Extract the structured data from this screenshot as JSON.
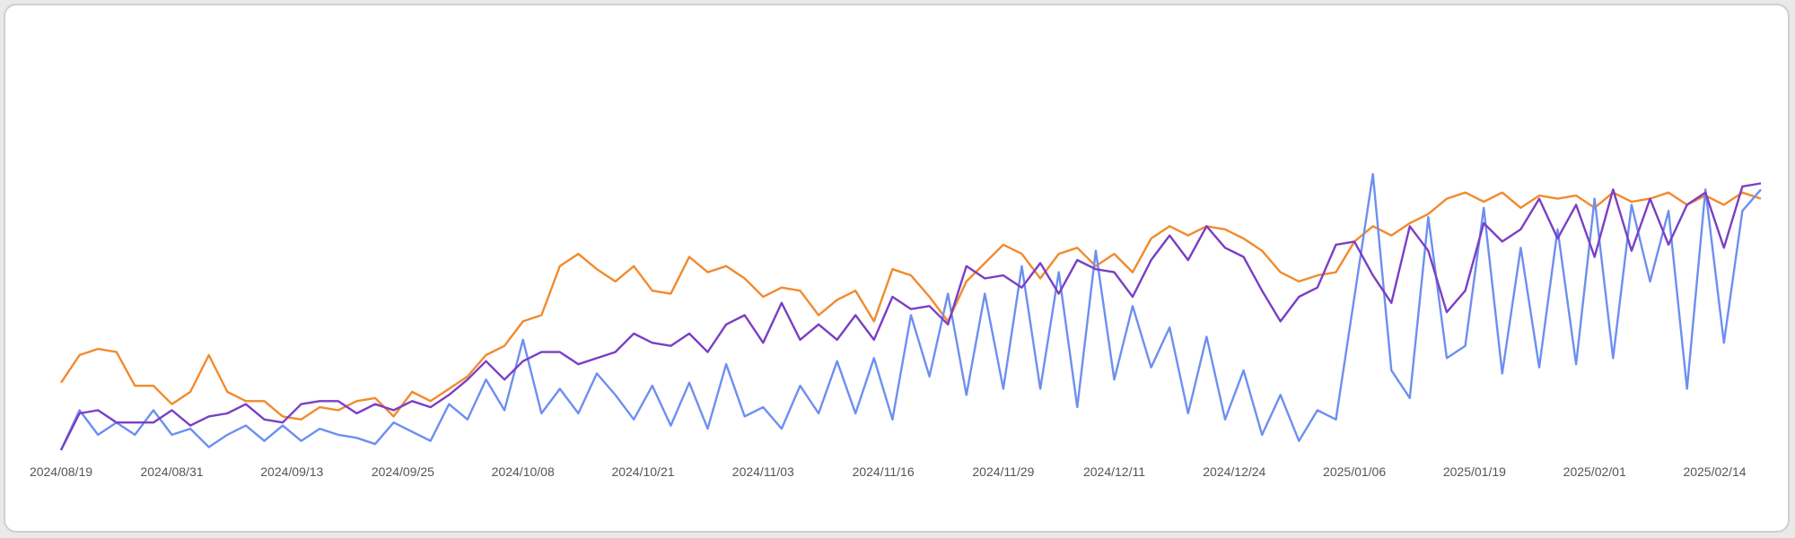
{
  "chart_data": {
    "type": "line",
    "title": "",
    "xlabel": "",
    "ylabel": "",
    "x_start": "2024/08/19",
    "x_end": "2025/02/19",
    "x_ticks": [
      "2024/08/19",
      "2024/08/31",
      "2024/09/13",
      "2024/09/25",
      "2024/10/08",
      "2024/10/21",
      "2024/11/03",
      "2024/11/16",
      "2024/11/29",
      "2024/12/11",
      "2024/12/24",
      "2025/01/06",
      "2025/01/19",
      "2025/02/01",
      "2025/02/14"
    ],
    "y_axis_visible": false,
    "ylim": [
      0,
      100
    ],
    "grid": false,
    "legend": "none",
    "series": [
      {
        "color": "#f28a2e",
        "points": [
          [
            "2024/08/19",
            22
          ],
          [
            "2024/08/21",
            31
          ],
          [
            "2024/08/23",
            33
          ],
          [
            "2024/08/25",
            32
          ],
          [
            "2024/08/27",
            21
          ],
          [
            "2024/08/29",
            21
          ],
          [
            "2024/08/31",
            15
          ],
          [
            "2024/09/02",
            19
          ],
          [
            "2024/09/04",
            31
          ],
          [
            "2024/09/06",
            19
          ],
          [
            "2024/09/08",
            16
          ],
          [
            "2024/09/10",
            16
          ],
          [
            "2024/09/12",
            11
          ],
          [
            "2024/09/14",
            10
          ],
          [
            "2024/09/16",
            14
          ],
          [
            "2024/09/18",
            13
          ],
          [
            "2024/09/20",
            16
          ],
          [
            "2024/09/22",
            17
          ],
          [
            "2024/09/24",
            11
          ],
          [
            "2024/09/26",
            19
          ],
          [
            "2024/09/28",
            16
          ],
          [
            "2024/09/30",
            20
          ],
          [
            "2024/10/02",
            24
          ],
          [
            "2024/10/04",
            31
          ],
          [
            "2024/10/06",
            34
          ],
          [
            "2024/10/08",
            42
          ],
          [
            "2024/10/10",
            44
          ],
          [
            "2024/10/12",
            60
          ],
          [
            "2024/10/14",
            64
          ],
          [
            "2024/10/16",
            59
          ],
          [
            "2024/10/18",
            55
          ],
          [
            "2024/10/20",
            60
          ],
          [
            "2024/10/22",
            52
          ],
          [
            "2024/10/24",
            51
          ],
          [
            "2024/10/26",
            63
          ],
          [
            "2024/10/28",
            58
          ],
          [
            "2024/10/30",
            60
          ],
          [
            "2024/11/01",
            56
          ],
          [
            "2024/11/03",
            50
          ],
          [
            "2024/11/05",
            53
          ],
          [
            "2024/11/07",
            52
          ],
          [
            "2024/11/09",
            44
          ],
          [
            "2024/11/11",
            49
          ],
          [
            "2024/11/13",
            52
          ],
          [
            "2024/11/15",
            42
          ],
          [
            "2024/11/17",
            59
          ],
          [
            "2024/11/19",
            57
          ],
          [
            "2024/11/21",
            50
          ],
          [
            "2024/11/23",
            42
          ],
          [
            "2024/11/25",
            55
          ],
          [
            "2024/11/27",
            61
          ],
          [
            "2024/11/29",
            67
          ],
          [
            "2024/12/01",
            64
          ],
          [
            "2024/12/03",
            56
          ],
          [
            "2024/12/05",
            64
          ],
          [
            "2024/12/07",
            66
          ],
          [
            "2024/12/09",
            60
          ],
          [
            "2024/12/11",
            64
          ],
          [
            "2024/12/13",
            58
          ],
          [
            "2024/12/15",
            69
          ],
          [
            "2024/12/17",
            73
          ],
          [
            "2024/12/19",
            70
          ],
          [
            "2024/12/21",
            73
          ],
          [
            "2024/12/23",
            72
          ],
          [
            "2024/12/25",
            69
          ],
          [
            "2024/12/27",
            65
          ],
          [
            "2024/12/29",
            58
          ],
          [
            "2024/12/31",
            55
          ],
          [
            "2025/01/02",
            57
          ],
          [
            "2025/01/04",
            58
          ],
          [
            "2025/01/06",
            68
          ],
          [
            "2025/01/08",
            73
          ],
          [
            "2025/01/10",
            70
          ],
          [
            "2025/01/12",
            74
          ],
          [
            "2025/01/14",
            77
          ],
          [
            "2025/01/16",
            82
          ],
          [
            "2025/01/18",
            84
          ],
          [
            "2025/01/20",
            81
          ],
          [
            "2025/01/22",
            84
          ],
          [
            "2025/01/24",
            79
          ],
          [
            "2025/01/26",
            83
          ],
          [
            "2025/01/28",
            82
          ],
          [
            "2025/01/30",
            83
          ],
          [
            "2025/02/01",
            79
          ],
          [
            "2025/02/03",
            84
          ],
          [
            "2025/02/05",
            81
          ],
          [
            "2025/02/07",
            82
          ],
          [
            "2025/02/09",
            84
          ],
          [
            "2025/02/11",
            80
          ],
          [
            "2025/02/13",
            83
          ],
          [
            "2025/02/15",
            80
          ],
          [
            "2025/02/17",
            84
          ],
          [
            "2025/02/19",
            82
          ]
        ]
      },
      {
        "color": "#6d8ff0",
        "points": [
          [
            "2024/08/19",
            0
          ],
          [
            "2024/08/21",
            13
          ],
          [
            "2024/08/23",
            5
          ],
          [
            "2024/08/25",
            9
          ],
          [
            "2024/08/27",
            5
          ],
          [
            "2024/08/29",
            13
          ],
          [
            "2024/08/31",
            5
          ],
          [
            "2024/09/02",
            7
          ],
          [
            "2024/09/04",
            1
          ],
          [
            "2024/09/06",
            5
          ],
          [
            "2024/09/08",
            8
          ],
          [
            "2024/09/10",
            3
          ],
          [
            "2024/09/12",
            8
          ],
          [
            "2024/09/14",
            3
          ],
          [
            "2024/09/16",
            7
          ],
          [
            "2024/09/18",
            5
          ],
          [
            "2024/09/20",
            4
          ],
          [
            "2024/09/22",
            2
          ],
          [
            "2024/09/24",
            9
          ],
          [
            "2024/09/26",
            6
          ],
          [
            "2024/09/28",
            3
          ],
          [
            "2024/09/30",
            15
          ],
          [
            "2024/10/02",
            10
          ],
          [
            "2024/10/04",
            23
          ],
          [
            "2024/10/06",
            13
          ],
          [
            "2024/10/08",
            36
          ],
          [
            "2024/10/10",
            12
          ],
          [
            "2024/10/12",
            20
          ],
          [
            "2024/10/14",
            12
          ],
          [
            "2024/10/16",
            25
          ],
          [
            "2024/10/18",
            18
          ],
          [
            "2024/10/20",
            10
          ],
          [
            "2024/10/22",
            21
          ],
          [
            "2024/10/24",
            8
          ],
          [
            "2024/10/26",
            22
          ],
          [
            "2024/10/28",
            7
          ],
          [
            "2024/10/30",
            28
          ],
          [
            "2024/11/01",
            11
          ],
          [
            "2024/11/03",
            14
          ],
          [
            "2024/11/05",
            7
          ],
          [
            "2024/11/07",
            21
          ],
          [
            "2024/11/09",
            12
          ],
          [
            "2024/11/11",
            29
          ],
          [
            "2024/11/13",
            12
          ],
          [
            "2024/11/15",
            30
          ],
          [
            "2024/11/17",
            10
          ],
          [
            "2024/11/19",
            44
          ],
          [
            "2024/11/21",
            24
          ],
          [
            "2024/11/23",
            51
          ],
          [
            "2024/11/25",
            18
          ],
          [
            "2024/11/27",
            51
          ],
          [
            "2024/11/29",
            20
          ],
          [
            "2024/12/01",
            60
          ],
          [
            "2024/12/03",
            20
          ],
          [
            "2024/12/05",
            58
          ],
          [
            "2024/12/07",
            14
          ],
          [
            "2024/12/09",
            65
          ],
          [
            "2024/12/11",
            23
          ],
          [
            "2024/12/13",
            47
          ],
          [
            "2024/12/15",
            27
          ],
          [
            "2024/12/17",
            40
          ],
          [
            "2024/12/19",
            12
          ],
          [
            "2024/12/21",
            37
          ],
          [
            "2024/12/23",
            10
          ],
          [
            "2024/12/25",
            26
          ],
          [
            "2024/12/27",
            5
          ],
          [
            "2024/12/29",
            18
          ],
          [
            "2024/12/31",
            3
          ],
          [
            "2025/01/02",
            13
          ],
          [
            "2025/01/04",
            10
          ],
          [
            "2025/01/06",
            50
          ],
          [
            "2025/01/08",
            90
          ],
          [
            "2025/01/10",
            26
          ],
          [
            "2025/01/12",
            17
          ],
          [
            "2025/01/14",
            76
          ],
          [
            "2025/01/16",
            30
          ],
          [
            "2025/01/18",
            34
          ],
          [
            "2025/01/20",
            79
          ],
          [
            "2025/01/22",
            25
          ],
          [
            "2025/01/24",
            66
          ],
          [
            "2025/01/26",
            27
          ],
          [
            "2025/01/28",
            72
          ],
          [
            "2025/01/30",
            28
          ],
          [
            "2025/02/01",
            82
          ],
          [
            "2025/02/03",
            30
          ],
          [
            "2025/02/05",
            80
          ],
          [
            "2025/02/07",
            55
          ],
          [
            "2025/02/09",
            78
          ],
          [
            "2025/02/11",
            20
          ],
          [
            "2025/02/13",
            85
          ],
          [
            "2025/02/15",
            35
          ],
          [
            "2025/02/17",
            78
          ],
          [
            "2025/02/19",
            85
          ]
        ]
      },
      {
        "color": "#7a3fc4",
        "points": [
          [
            "2024/08/19",
            0
          ],
          [
            "2024/08/21",
            12
          ],
          [
            "2024/08/23",
            13
          ],
          [
            "2024/08/25",
            9
          ],
          [
            "2024/08/27",
            9
          ],
          [
            "2024/08/29",
            9
          ],
          [
            "2024/08/31",
            13
          ],
          [
            "2024/09/02",
            8
          ],
          [
            "2024/09/04",
            11
          ],
          [
            "2024/09/06",
            12
          ],
          [
            "2024/09/08",
            15
          ],
          [
            "2024/09/10",
            10
          ],
          [
            "2024/09/12",
            9
          ],
          [
            "2024/09/14",
            15
          ],
          [
            "2024/09/16",
            16
          ],
          [
            "2024/09/18",
            16
          ],
          [
            "2024/09/20",
            12
          ],
          [
            "2024/09/22",
            15
          ],
          [
            "2024/09/24",
            13
          ],
          [
            "2024/09/26",
            16
          ],
          [
            "2024/09/28",
            14
          ],
          [
            "2024/09/30",
            18
          ],
          [
            "2024/10/02",
            23
          ],
          [
            "2024/10/04",
            29
          ],
          [
            "2024/10/06",
            23
          ],
          [
            "2024/10/08",
            29
          ],
          [
            "2024/10/10",
            32
          ],
          [
            "2024/10/12",
            32
          ],
          [
            "2024/10/14",
            28
          ],
          [
            "2024/10/16",
            30
          ],
          [
            "2024/10/18",
            32
          ],
          [
            "2024/10/20",
            38
          ],
          [
            "2024/10/22",
            35
          ],
          [
            "2024/10/24",
            34
          ],
          [
            "2024/10/26",
            38
          ],
          [
            "2024/10/28",
            32
          ],
          [
            "2024/10/30",
            41
          ],
          [
            "2024/11/01",
            44
          ],
          [
            "2024/11/03",
            35
          ],
          [
            "2024/11/05",
            48
          ],
          [
            "2024/11/07",
            36
          ],
          [
            "2024/11/09",
            41
          ],
          [
            "2024/11/11",
            36
          ],
          [
            "2024/11/13",
            44
          ],
          [
            "2024/11/15",
            36
          ],
          [
            "2024/11/17",
            50
          ],
          [
            "2024/11/19",
            46
          ],
          [
            "2024/11/21",
            47
          ],
          [
            "2024/11/23",
            41
          ],
          [
            "2024/11/25",
            60
          ],
          [
            "2024/11/27",
            56
          ],
          [
            "2024/11/29",
            57
          ],
          [
            "2024/12/01",
            53
          ],
          [
            "2024/12/03",
            61
          ],
          [
            "2024/12/05",
            51
          ],
          [
            "2024/12/07",
            62
          ],
          [
            "2024/12/09",
            59
          ],
          [
            "2024/12/11",
            58
          ],
          [
            "2024/12/13",
            50
          ],
          [
            "2024/12/15",
            62
          ],
          [
            "2024/12/17",
            70
          ],
          [
            "2024/12/19",
            62
          ],
          [
            "2024/12/21",
            73
          ],
          [
            "2024/12/23",
            66
          ],
          [
            "2024/12/25",
            63
          ],
          [
            "2024/12/27",
            52
          ],
          [
            "2024/12/29",
            42
          ],
          [
            "2024/12/31",
            50
          ],
          [
            "2025/01/02",
            53
          ],
          [
            "2025/01/04",
            67
          ],
          [
            "2025/01/06",
            68
          ],
          [
            "2025/01/08",
            57
          ],
          [
            "2025/01/10",
            48
          ],
          [
            "2025/01/12",
            73
          ],
          [
            "2025/01/14",
            65
          ],
          [
            "2025/01/16",
            45
          ],
          [
            "2025/01/18",
            52
          ],
          [
            "2025/01/20",
            74
          ],
          [
            "2025/01/22",
            68
          ],
          [
            "2025/01/24",
            72
          ],
          [
            "2025/01/26",
            82
          ],
          [
            "2025/01/28",
            69
          ],
          [
            "2025/01/30",
            80
          ],
          [
            "2025/02/01",
            63
          ],
          [
            "2025/02/03",
            85
          ],
          [
            "2025/02/05",
            65
          ],
          [
            "2025/02/07",
            82
          ],
          [
            "2025/02/09",
            67
          ],
          [
            "2025/02/11",
            80
          ],
          [
            "2025/02/13",
            84
          ],
          [
            "2025/02/15",
            66
          ],
          [
            "2025/02/17",
            86
          ],
          [
            "2025/02/19",
            87
          ]
        ]
      }
    ]
  }
}
